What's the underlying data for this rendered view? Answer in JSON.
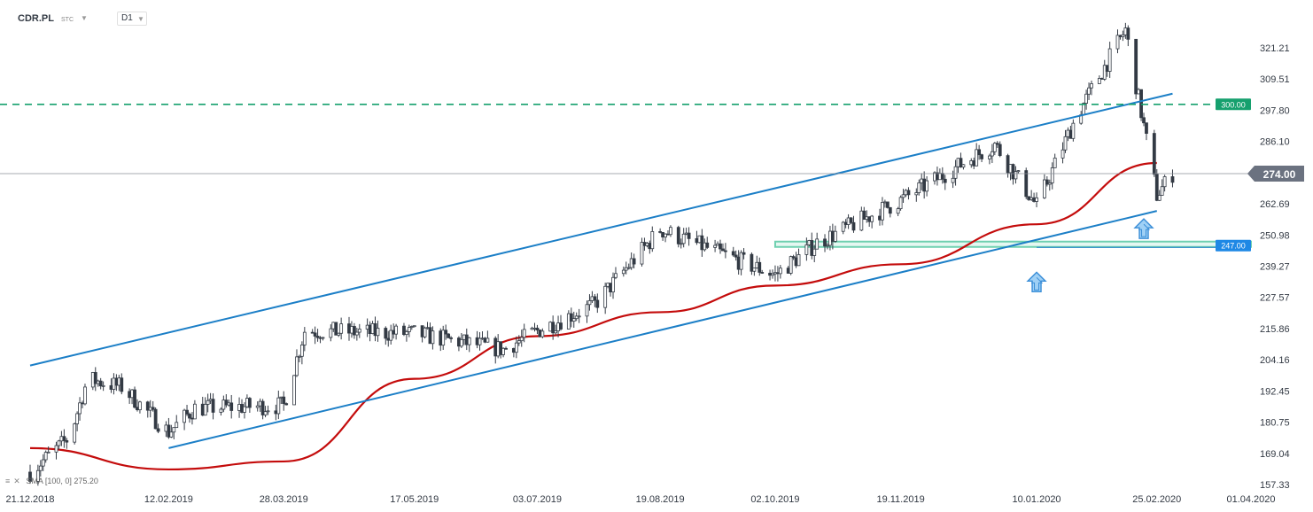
{
  "header": {
    "symbol": "CDR.PL",
    "instrument_type": "STC",
    "timeframe": "D1"
  },
  "indicator": {
    "label": "SMA [100, 0]",
    "value": "275.20"
  },
  "colors": {
    "channel": "#1c7fc7",
    "sma": "#c40c0c",
    "resistance": "#16a06e",
    "support_zone": "#6fd0b0",
    "candle_up": "#ffffff",
    "candle_down": "#333a44",
    "current_price_tag": "#6b7280",
    "support_tag": "#1e88e5"
  },
  "chart_data": {
    "type": "candlestick",
    "title": "",
    "x_axis": {
      "tick_labels": [
        "21.12.2018",
        "12.02.2019",
        "28.03.2019",
        "17.05.2019",
        "03.07.2019",
        "19.08.2019",
        "02.10.2019",
        "19.11.2019",
        "10.01.2020",
        "25.02.2020",
        "01.04.2020"
      ]
    },
    "y_axis": {
      "tick_labels": [
        "321.21",
        "309.51",
        "297.80",
        "286.10",
        "274.00",
        "262.69",
        "250.98",
        "239.27",
        "227.57",
        "215.86",
        "204.16",
        "192.45",
        "180.75",
        "169.04",
        "157.33"
      ],
      "ylim": [
        157.33,
        330
      ],
      "position": "right"
    },
    "price_path": [
      {
        "date": "21.12.2018",
        "close": 162
      },
      {
        "date": "05.01.2019",
        "close": 175
      },
      {
        "date": "12.01.2019",
        "close": 197
      },
      {
        "date": "25.01.2019",
        "close": 194
      },
      {
        "date": "12.02.2019",
        "close": 177
      },
      {
        "date": "22.02.2019",
        "close": 186
      },
      {
        "date": "28.03.2019",
        "close": 187
      },
      {
        "date": "05.04.2019",
        "close": 215
      },
      {
        "date": "17.05.2019",
        "close": 214
      },
      {
        "date": "20.06.2019",
        "close": 208
      },
      {
        "date": "03.07.2019",
        "close": 215
      },
      {
        "date": "25.07.2019",
        "close": 225
      },
      {
        "date": "19.08.2019",
        "close": 253
      },
      {
        "date": "02.10.2019",
        "close": 236
      },
      {
        "date": "18.10.2019",
        "close": 248
      },
      {
        "date": "19.11.2019",
        "close": 264
      },
      {
        "date": "25.12.2019",
        "close": 285
      },
      {
        "date": "10.01.2020",
        "close": 262
      },
      {
        "date": "25.01.2020",
        "close": 295
      },
      {
        "date": "13.02.2020",
        "close": 328
      },
      {
        "date": "25.02.2020",
        "close": 266
      },
      {
        "date": "02.03.2020",
        "close": 274
      }
    ],
    "sma": {
      "name": "SMA [100, 0]",
      "points": [
        {
          "date": "21.12.2018",
          "value": 171
        },
        {
          "date": "12.02.2019",
          "value": 163
        },
        {
          "date": "28.03.2019",
          "value": 166
        },
        {
          "date": "17.05.2019",
          "value": 197
        },
        {
          "date": "03.07.2019",
          "value": 213
        },
        {
          "date": "19.08.2019",
          "value": 222
        },
        {
          "date": "02.10.2019",
          "value": 232
        },
        {
          "date": "19.11.2019",
          "value": 240
        },
        {
          "date": "10.01.2020",
          "value": 255
        },
        {
          "date": "25.02.2020",
          "value": 278
        }
      ]
    },
    "channel_upper": [
      {
        "date": "21.12.2018",
        "value": 202
      },
      {
        "date": "02.03.2020",
        "value": 304
      }
    ],
    "channel_lower": [
      {
        "date": "12.02.2019",
        "value": 171
      },
      {
        "date": "25.02.2020",
        "value": 260
      }
    ],
    "levels": {
      "resistance": "300.00",
      "current_price": "274.00",
      "support": "247.00"
    },
    "support_zone": {
      "from_date": "02.10.2019",
      "top": 248.5,
      "bottom": 246.5
    },
    "annotations": [
      {
        "type": "arrow-up",
        "date": "10.01.2020",
        "at_price": 237
      },
      {
        "type": "arrow-up",
        "date": "20.02.2020",
        "at_price": 257
      }
    ],
    "grid": false,
    "legend": "none"
  }
}
